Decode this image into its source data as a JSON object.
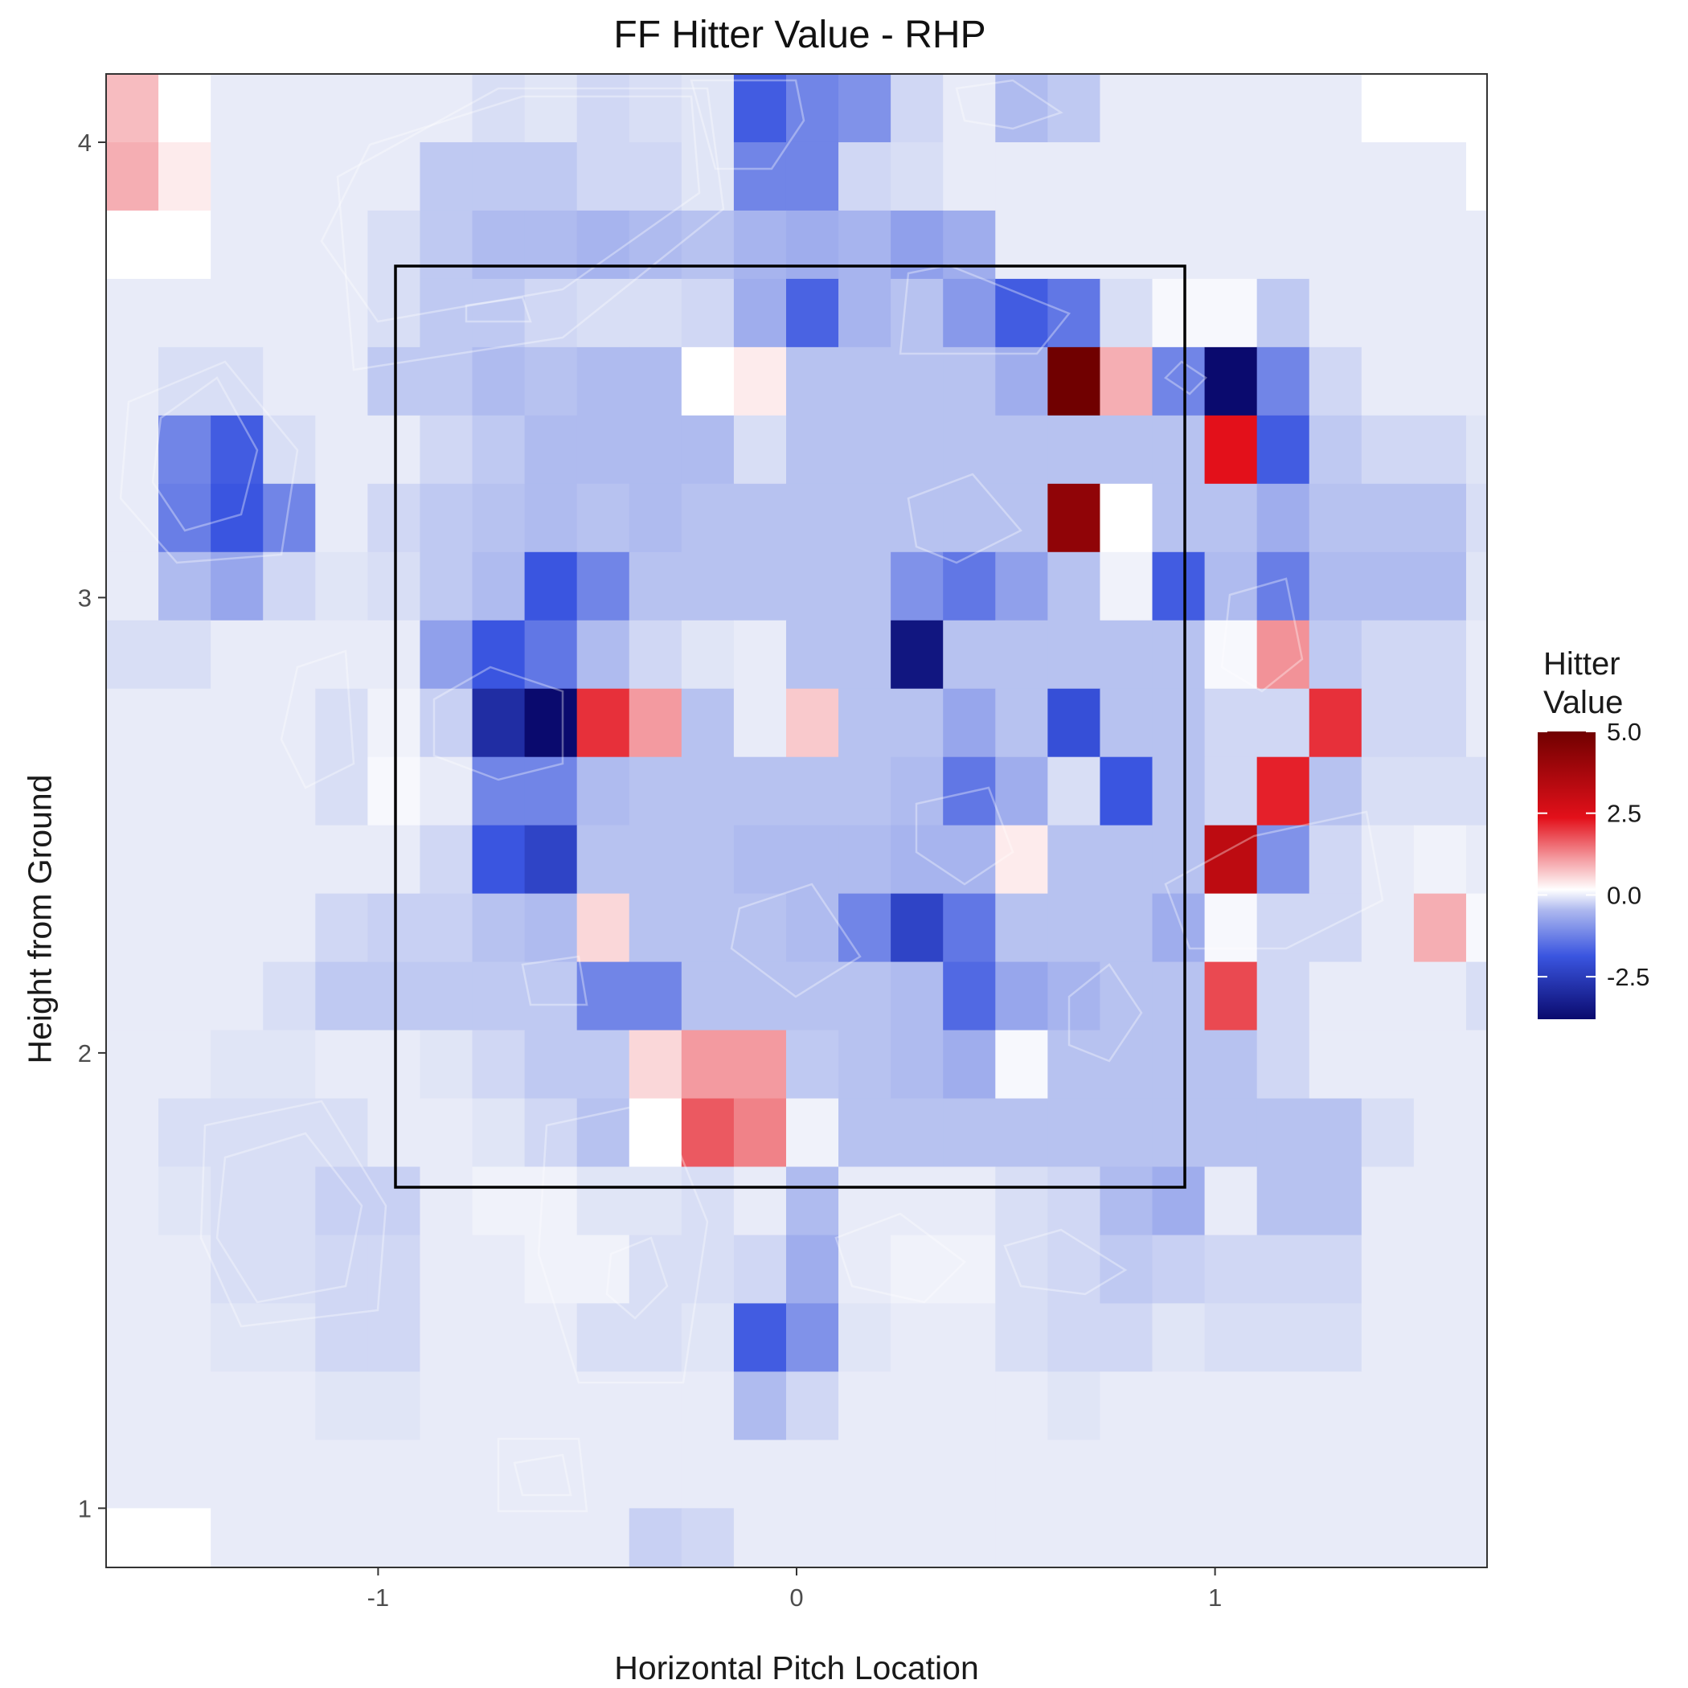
{
  "chart_data": {
    "type": "heatmap",
    "title": "FF Hitter Value - RHP",
    "xlabel": "Horizontal Pitch Location",
    "ylabel": "Height from Ground",
    "xlim": [
      -1.65,
      1.65
    ],
    "ylim": [
      0.87,
      4.15
    ],
    "x_ticks": [
      {
        "value": -1,
        "label": "-1"
      },
      {
        "value": 0,
        "label": "0"
      },
      {
        "value": 1,
        "label": "1"
      }
    ],
    "y_ticks": [
      {
        "value": 1,
        "label": "1"
      },
      {
        "value": 2,
        "label": "2"
      },
      {
        "value": 3,
        "label": "3"
      },
      {
        "value": 4,
        "label": "4"
      }
    ],
    "grid": false,
    "strike_zone": {
      "x": [
        -0.95,
        0.95
      ],
      "y": [
        1.7,
        3.7
      ]
    },
    "bins": {
      "x_start": -1.65,
      "x_step": 0.125,
      "y_top": 4.15,
      "y_step": 0.15,
      "rows_top_to_bottom": [
        [
          1,
          0,
          -0.3,
          -0.3,
          -0.3,
          -0.3,
          -0.3,
          -0.5,
          -0.4,
          -0.6,
          -0.5,
          -0.4,
          -2.4,
          -1.8,
          -1.6,
          -0.6,
          -0.3,
          -1.0,
          -0.8,
          -0.3,
          -0.3,
          -0.3,
          -0.3,
          -0.3,
          0,
          0,
          0
        ],
        [
          1.2,
          0.3,
          -0.3,
          -0.3,
          -0.3,
          -0.3,
          -0.8,
          -0.8,
          -0.8,
          -0.6,
          -0.6,
          -0.4,
          -1.8,
          -1.8,
          -0.6,
          -0.5,
          -0.3,
          -0.3,
          -0.3,
          -0.3,
          -0.3,
          -0.3,
          -0.3,
          -0.3,
          -0.3,
          -0.3,
          0
        ],
        [
          0,
          0,
          -0.3,
          -0.3,
          -0.3,
          -0.5,
          -0.8,
          -1.0,
          -1.0,
          -1.1,
          -1.0,
          -0.9,
          -1.1,
          -1.2,
          -1.1,
          -1.4,
          -1.2,
          -0.3,
          -0.3,
          -0.3,
          -0.3,
          -0.3,
          -0.3,
          -0.3,
          -0.3,
          -0.3,
          -0.3
        ],
        [
          -0.3,
          -0.3,
          -0.3,
          -0.3,
          -0.3,
          -0.5,
          -0.8,
          -0.8,
          -0.6,
          -0.5,
          -0.5,
          -0.6,
          -1.2,
          -2.3,
          -1.1,
          -0.9,
          -1.5,
          -2.4,
          -2.0,
          -0.5,
          -0.1,
          -0.1,
          -0.8,
          -0.3,
          -0.3,
          -0.3,
          -0.3
        ],
        [
          -0.3,
          -0.5,
          -0.5,
          -0.3,
          -0.3,
          -0.8,
          -0.8,
          -1.0,
          -0.9,
          -1.0,
          -1.0,
          0,
          0.3,
          -0.9,
          -0.9,
          -0.9,
          -0.9,
          -1.2,
          5.0,
          1.2,
          -1.8,
          -3.8,
          -1.8,
          -0.6,
          -0.3,
          -0.3,
          -0.3
        ],
        [
          -0.3,
          -1.8,
          -2.4,
          -0.5,
          -0.3,
          -0.3,
          -0.6,
          -0.8,
          -1.0,
          -1.0,
          -1.0,
          -1.0,
          -0.5,
          -0.9,
          -0.9,
          -0.9,
          -0.9,
          -0.9,
          -0.9,
          -0.9,
          -0.9,
          3.2,
          -2.4,
          -0.8,
          -0.6,
          -0.6,
          -0.4
        ],
        [
          -0.3,
          -1.9,
          -2.5,
          -1.8,
          -0.3,
          -0.6,
          -0.8,
          -0.9,
          -1.0,
          -0.9,
          -1.0,
          -0.9,
          -0.9,
          -0.9,
          -0.9,
          -0.9,
          -0.9,
          -0.9,
          4.5,
          0,
          -0.9,
          -0.9,
          -1.2,
          -0.9,
          -0.9,
          -0.9,
          -0.5
        ],
        [
          -0.3,
          -1.0,
          -1.3,
          -0.6,
          -0.4,
          -0.5,
          -0.8,
          -1.0,
          -2.5,
          -1.8,
          -0.9,
          -0.9,
          -0.9,
          -0.9,
          -0.9,
          -1.6,
          -2.0,
          -1.4,
          -0.9,
          -0.2,
          -2.4,
          -1.0,
          -1.9,
          -1.0,
          -1.0,
          -1.0,
          -0.4
        ],
        [
          -0.5,
          -0.5,
          -0.3,
          -0.3,
          -0.3,
          -0.3,
          -1.4,
          -2.5,
          -2.0,
          -1.0,
          -0.6,
          -0.4,
          -0.3,
          -0.9,
          -0.9,
          -3.6,
          -0.9,
          -0.9,
          -0.9,
          -0.9,
          -0.9,
          -0.1,
          1.6,
          -0.8,
          -0.6,
          -0.6,
          -0.3
        ],
        [
          -0.3,
          -0.3,
          -0.3,
          -0.3,
          -0.5,
          -0.2,
          -0.7,
          -3.2,
          -3.8,
          2.8,
          1.5,
          -0.9,
          -0.3,
          0.8,
          -0.9,
          -0.9,
          -1.3,
          -0.9,
          -2.6,
          -0.9,
          -0.9,
          -0.6,
          -0.6,
          2.8,
          -0.6,
          -0.6,
          -0.3
        ],
        [
          -0.3,
          -0.3,
          -0.3,
          -0.3,
          -0.5,
          -0.1,
          -0.3,
          -1.8,
          -1.8,
          -1.0,
          -0.9,
          -0.9,
          -0.9,
          -0.9,
          -0.9,
          -1.0,
          -2.0,
          -1.2,
          -0.5,
          -2.5,
          -0.9,
          -0.6,
          3.0,
          -0.9,
          -0.5,
          -0.5,
          -0.5
        ],
        [
          -0.3,
          -0.3,
          -0.3,
          -0.3,
          -0.3,
          -0.3,
          -0.6,
          -2.5,
          -2.8,
          -0.9,
          -0.9,
          -0.9,
          -1.0,
          -1.0,
          -1.0,
          -1.1,
          -1.1,
          0.3,
          -0.9,
          -0.9,
          -0.9,
          3.8,
          -1.6,
          -0.6,
          -0.3,
          -0.2,
          -0.3
        ],
        [
          -0.3,
          -0.3,
          -0.3,
          -0.3,
          -0.6,
          -0.7,
          -0.7,
          -0.9,
          -1.0,
          0.6,
          -0.9,
          -0.9,
          -0.9,
          -1.0,
          -1.8,
          -2.8,
          -2.0,
          -0.9,
          -0.9,
          -0.9,
          -1.2,
          -0.1,
          -0.6,
          -0.6,
          -0.3,
          1.2,
          -0.1
        ],
        [
          -0.3,
          -0.3,
          -0.3,
          -0.5,
          -0.8,
          -0.8,
          -0.8,
          -0.8,
          -0.8,
          -1.8,
          -1.8,
          -0.9,
          -0.9,
          -0.9,
          -0.9,
          -1.0,
          -2.2,
          -1.3,
          -1.1,
          -0.9,
          -0.9,
          2.5,
          -0.6,
          -0.3,
          -0.3,
          -0.3,
          -0.5
        ],
        [
          -0.3,
          -0.3,
          -0.4,
          -0.4,
          -0.3,
          -0.3,
          -0.4,
          -0.6,
          -0.8,
          -0.8,
          0.6,
          1.5,
          1.5,
          -0.8,
          -0.9,
          -1.0,
          -1.2,
          -0.1,
          -0.9,
          -0.9,
          -0.9,
          -0.9,
          -0.6,
          -0.3,
          -0.3,
          -0.3,
          -0.3
        ],
        [
          -0.3,
          -0.5,
          -0.5,
          -0.5,
          -0.5,
          -0.3,
          -0.3,
          -0.4,
          -0.6,
          -0.9,
          0,
          2.3,
          1.8,
          -0.2,
          -0.9,
          -0.9,
          -0.9,
          -0.9,
          -0.9,
          -0.9,
          -0.9,
          -0.9,
          -0.9,
          -0.9,
          -0.5,
          -0.3,
          -0.3
        ],
        [
          -0.3,
          -0.4,
          -0.5,
          -0.5,
          -0.7,
          -0.7,
          -0.3,
          -0.2,
          -0.2,
          -0.4,
          -0.4,
          -0.5,
          -0.3,
          -1.0,
          -0.3,
          -0.3,
          -0.3,
          -0.5,
          -0.6,
          -1.0,
          -1.2,
          -0.3,
          -0.9,
          -0.9,
          -0.3,
          -0.3,
          -0.3
        ],
        [
          -0.3,
          -0.3,
          -0.5,
          -0.5,
          -0.6,
          -0.6,
          -0.3,
          -0.3,
          -0.2,
          -0.2,
          -0.5,
          -0.5,
          -0.6,
          -1.2,
          -0.3,
          -0.2,
          -0.2,
          -0.5,
          -0.6,
          -0.8,
          -0.7,
          -0.6,
          -0.6,
          -0.6,
          -0.3,
          -0.3,
          -0.3
        ],
        [
          -0.3,
          -0.3,
          -0.4,
          -0.4,
          -0.6,
          -0.6,
          -0.3,
          -0.3,
          -0.3,
          -0.5,
          -0.5,
          -0.4,
          -2.4,
          -1.6,
          -0.4,
          -0.3,
          -0.3,
          -0.5,
          -0.6,
          -0.6,
          -0.4,
          -0.5,
          -0.5,
          -0.5,
          -0.3,
          -0.3,
          -0.3
        ],
        [
          -0.3,
          -0.3,
          -0.3,
          -0.3,
          -0.4,
          -0.4,
          -0.3,
          -0.3,
          -0.3,
          -0.3,
          -0.3,
          -0.3,
          -1.0,
          -0.6,
          -0.3,
          -0.3,
          -0.3,
          -0.3,
          -0.4,
          -0.3,
          -0.3,
          -0.3,
          -0.3,
          -0.3,
          -0.3,
          -0.3,
          -0.3
        ],
        [
          -0.3,
          -0.3,
          -0.3,
          -0.3,
          -0.3,
          -0.3,
          -0.3,
          -0.3,
          -0.3,
          -0.3,
          -0.3,
          -0.3,
          -0.3,
          -0.3,
          -0.3,
          -0.3,
          -0.3,
          -0.3,
          -0.3,
          -0.3,
          -0.3,
          -0.3,
          -0.3,
          -0.3,
          -0.3,
          -0.3,
          -0.3
        ],
        [
          0,
          0,
          -0.3,
          -0.3,
          -0.3,
          -0.3,
          -0.3,
          -0.3,
          -0.3,
          -0.3,
          -0.7,
          -0.6,
          -0.3,
          -0.3,
          -0.3,
          -0.3,
          -0.3,
          -0.3,
          -0.3,
          -0.3,
          -0.3,
          -0.3,
          -0.3,
          -0.3,
          -0.3,
          -0.3,
          -0.3
        ],
        [
          0,
          0,
          0,
          0,
          -0.3,
          -0.3,
          -0.3,
          -0.3,
          -0.3,
          -0.3,
          -0.3,
          -0.3,
          -0.3,
          -0.3,
          -0.3,
          -0.3,
          -0.3,
          -0.3,
          -0.3,
          -0.3,
          -0.3,
          -0.3,
          -0.3,
          -0.3,
          -0.3,
          -0.3,
          -0.3
        ]
      ]
    },
    "legend": {
      "title": [
        "Hitter",
        "Value"
      ],
      "placement": "right",
      "ticks": [
        {
          "value": 5,
          "label": "5.0"
        },
        {
          "value": 2.5,
          "label": "2.5"
        },
        {
          "value": 0,
          "label": "0.0"
        },
        {
          "value": -2.5,
          "label": "-2.5"
        }
      ],
      "range": [
        -3.8,
        5.0
      ],
      "colors": {
        "low": "#0a0a6e",
        "mid_low": "#3a55e0",
        "zero": "#ffffff",
        "mid_high": "#e3101a",
        "high": "#700000"
      }
    }
  }
}
